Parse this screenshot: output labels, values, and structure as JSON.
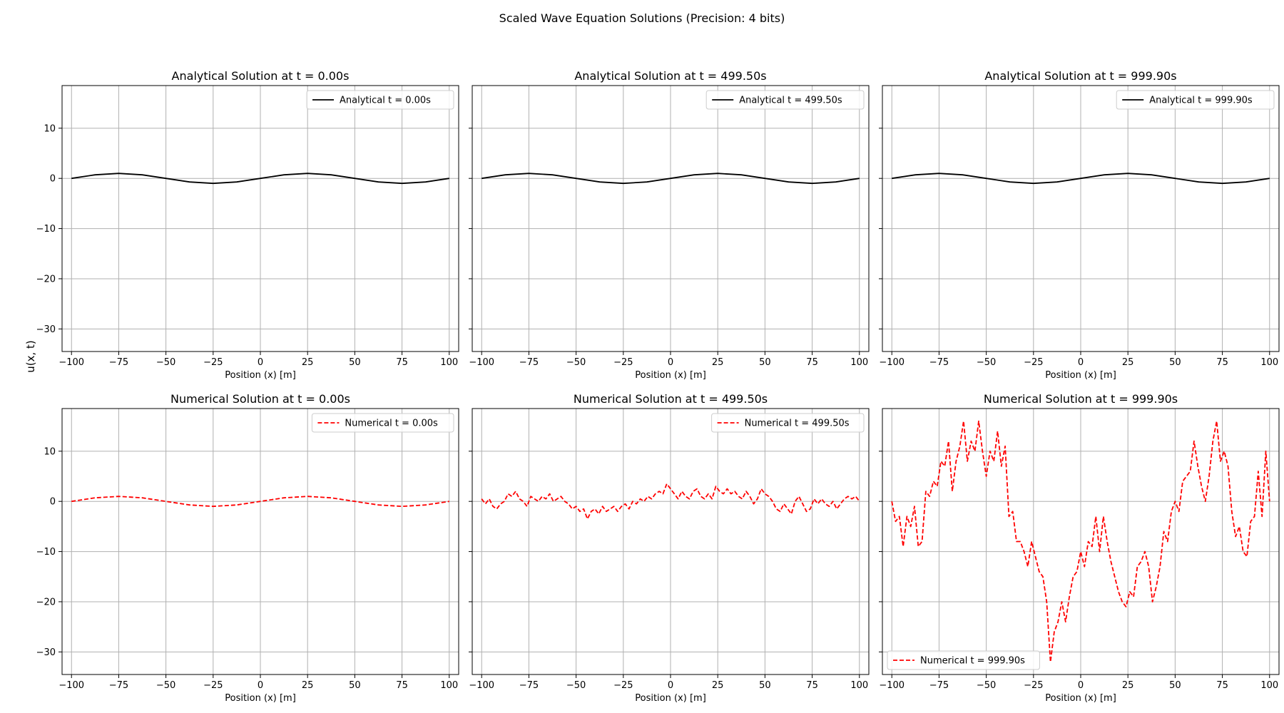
{
  "figure": {
    "title": "Scaled Wave Equation Solutions (Precision: 4 bits)",
    "ylabel": "u(x, t)"
  },
  "chart_data": [
    {
      "type": "line",
      "title": "Analytical Solution at t = 0.00s",
      "xlabel": "Position (x) [m]",
      "ylabel": "u(x, t)",
      "xlim": [
        -105,
        105
      ],
      "ylim": [
        -34.5,
        18.5
      ],
      "xticks": [
        -100,
        -75,
        -50,
        -25,
        0,
        25,
        50,
        75,
        100
      ],
      "yticks": [
        -30,
        -20,
        -10,
        0,
        10
      ],
      "show_yticklabels": true,
      "grid": true,
      "legend_position": "top-right",
      "series": [
        {
          "name": "Analytical t = 0.00s",
          "color": "#000000",
          "style": "solid",
          "x": [
            -100,
            -87.5,
            -75,
            -62.5,
            -50,
            -37.5,
            -25,
            -12.5,
            0,
            12.5,
            25,
            37.5,
            50,
            62.5,
            75,
            87.5,
            100
          ],
          "y": [
            0,
            0.71,
            1,
            0.71,
            0,
            -0.71,
            -1,
            -0.71,
            0,
            0.71,
            1,
            0.71,
            0,
            -0.71,
            -1,
            -0.71,
            0
          ]
        }
      ]
    },
    {
      "type": "line",
      "title": "Analytical Solution at t = 499.50s",
      "xlabel": "Position (x) [m]",
      "xlim": [
        -105,
        105
      ],
      "ylim": [
        -34.5,
        18.5
      ],
      "xticks": [
        -100,
        -75,
        -50,
        -25,
        0,
        25,
        50,
        75,
        100
      ],
      "yticks": [
        -30,
        -20,
        -10,
        0,
        10
      ],
      "show_yticklabels": false,
      "grid": true,
      "legend_position": "top-right",
      "series": [
        {
          "name": "Analytical t = 499.50s",
          "color": "#000000",
          "style": "solid",
          "x": [
            -100,
            -87.5,
            -75,
            -62.5,
            -50,
            -37.5,
            -25,
            -12.5,
            0,
            12.5,
            25,
            37.5,
            50,
            62.5,
            75,
            87.5,
            100
          ],
          "y": [
            0,
            0.71,
            1,
            0.71,
            0,
            -0.71,
            -1,
            -0.71,
            0,
            0.71,
            1,
            0.71,
            0,
            -0.71,
            -1,
            -0.71,
            0
          ]
        }
      ]
    },
    {
      "type": "line",
      "title": "Analytical Solution at t = 999.90s",
      "xlabel": "Position (x) [m]",
      "xlim": [
        -105,
        105
      ],
      "ylim": [
        -34.5,
        18.5
      ],
      "xticks": [
        -100,
        -75,
        -50,
        -25,
        0,
        25,
        50,
        75,
        100
      ],
      "yticks": [
        -30,
        -20,
        -10,
        0,
        10
      ],
      "show_yticklabels": false,
      "grid": true,
      "legend_position": "top-right",
      "series": [
        {
          "name": "Analytical t = 999.90s",
          "color": "#000000",
          "style": "solid",
          "x": [
            -100,
            -87.5,
            -75,
            -62.5,
            -50,
            -37.5,
            -25,
            -12.5,
            0,
            12.5,
            25,
            37.5,
            50,
            62.5,
            75,
            87.5,
            100
          ],
          "y": [
            0,
            0.71,
            1,
            0.71,
            0,
            -0.71,
            -1,
            -0.71,
            0,
            0.71,
            1,
            0.71,
            0,
            -0.71,
            -1,
            -0.71,
            0
          ]
        }
      ]
    },
    {
      "type": "line",
      "title": "Numerical Solution at t = 0.00s",
      "xlabel": "Position (x) [m]",
      "ylabel": "u(x, t)",
      "xlim": [
        -105,
        105
      ],
      "ylim": [
        -34.5,
        18.5
      ],
      "xticks": [
        -100,
        -75,
        -50,
        -25,
        0,
        25,
        50,
        75,
        100
      ],
      "yticks": [
        -30,
        -20,
        -10,
        0,
        10
      ],
      "show_yticklabels": true,
      "grid": true,
      "legend_position": "top-right",
      "series": [
        {
          "name": "Numerical t = 0.00s",
          "color": "#ff0000",
          "style": "dashed",
          "x": [
            -100,
            -87.5,
            -75,
            -62.5,
            -50,
            -37.5,
            -25,
            -12.5,
            0,
            12.5,
            25,
            37.5,
            50,
            62.5,
            75,
            87.5,
            100
          ],
          "y": [
            0,
            0.71,
            1,
            0.71,
            0,
            -0.71,
            -1,
            -0.71,
            0,
            0.71,
            1,
            0.71,
            0,
            -0.71,
            -1,
            -0.71,
            0
          ]
        }
      ]
    },
    {
      "type": "line",
      "title": "Numerical Solution at t = 499.50s",
      "xlabel": "Position (x) [m]",
      "xlim": [
        -105,
        105
      ],
      "ylim": [
        -34.5,
        18.5
      ],
      "xticks": [
        -100,
        -75,
        -50,
        -25,
        0,
        25,
        50,
        75,
        100
      ],
      "yticks": [
        -30,
        -20,
        -10,
        0,
        10
      ],
      "show_yticklabels": false,
      "grid": true,
      "legend_position": "top-right",
      "series": [
        {
          "name": "Numerical t = 499.50s",
          "color": "#ff0000",
          "style": "dashed",
          "x": [
            -100,
            -98,
            -96,
            -94,
            -92,
            -90,
            -88,
            -86,
            -84,
            -82,
            -80,
            -78,
            -76,
            -74,
            -72,
            -70,
            -68,
            -66,
            -64,
            -62,
            -60,
            -58,
            -56,
            -54,
            -52,
            -50,
            -48,
            -46,
            -44,
            -42,
            -40,
            -38,
            -36,
            -34,
            -32,
            -30,
            -28,
            -26,
            -24,
            -22,
            -20,
            -18,
            -16,
            -14,
            -12,
            -10,
            -8,
            -6,
            -4,
            -2,
            0,
            2,
            4,
            6,
            8,
            10,
            12,
            14,
            16,
            18,
            20,
            22,
            24,
            26,
            28,
            30,
            32,
            34,
            36,
            38,
            40,
            42,
            44,
            46,
            48,
            50,
            52,
            54,
            56,
            58,
            60,
            62,
            64,
            66,
            68,
            70,
            72,
            74,
            76,
            78,
            80,
            82,
            84,
            86,
            88,
            90,
            92,
            94,
            96,
            98,
            100
          ],
          "y": [
            0.5,
            -0.5,
            0.5,
            -1.0,
            -1.5,
            -0.5,
            0.0,
            1.5,
            1.0,
            2.0,
            0.5,
            0.0,
            -1.0,
            1.0,
            0.5,
            0.0,
            1.0,
            0.5,
            1.5,
            0.0,
            0.5,
            1.0,
            0.0,
            -0.5,
            -1.5,
            -1.0,
            -2.0,
            -1.5,
            -3.5,
            -2.0,
            -1.5,
            -2.5,
            -1.0,
            -2.0,
            -1.5,
            -1.0,
            -2.0,
            -1.0,
            -0.5,
            -1.5,
            0.0,
            -0.5,
            0.5,
            0.0,
            1.0,
            0.5,
            1.5,
            2.0,
            1.5,
            3.5,
            2.5,
            1.5,
            0.5,
            2.0,
            1.0,
            0.5,
            2.0,
            2.5,
            1.0,
            0.5,
            1.5,
            0.5,
            3.0,
            2.0,
            1.5,
            2.5,
            1.5,
            2.0,
            1.0,
            0.5,
            2.0,
            1.0,
            -0.5,
            0.5,
            2.5,
            1.5,
            1.0,
            0.0,
            -1.5,
            -2.0,
            -0.5,
            -1.5,
            -2.5,
            0.0,
            1.0,
            -0.5,
            -2.0,
            -1.5,
            0.5,
            -0.5,
            0.5,
            -0.5,
            -1.0,
            0.0,
            -1.5,
            -0.5,
            0.5,
            1.0,
            0.5,
            1.0,
            0.0
          ]
        }
      ]
    },
    {
      "type": "line",
      "title": "Numerical Solution at t = 999.90s",
      "xlabel": "Position (x) [m]",
      "xlim": [
        -105,
        105
      ],
      "ylim": [
        -34.5,
        18.5
      ],
      "xticks": [
        -100,
        -75,
        -50,
        -25,
        0,
        25,
        50,
        75,
        100
      ],
      "yticks": [
        -30,
        -20,
        -10,
        0,
        10
      ],
      "show_yticklabels": false,
      "grid": true,
      "legend_position": "bottom-left",
      "series": [
        {
          "name": "Numerical t = 999.90s",
          "color": "#ff0000",
          "style": "dashed",
          "x": [
            -100,
            -98,
            -96,
            -94,
            -92,
            -90,
            -88,
            -86,
            -84,
            -82,
            -80,
            -78,
            -76,
            -74,
            -72,
            -70,
            -68,
            -66,
            -64,
            -62,
            -60,
            -58,
            -56,
            -54,
            -52,
            -50,
            -48,
            -46,
            -44,
            -42,
            -40,
            -38,
            -36,
            -34,
            -32,
            -30,
            -28,
            -26,
            -24,
            -22,
            -20,
            -18,
            -16,
            -14,
            -12,
            -10,
            -8,
            -6,
            -4,
            -2,
            0,
            2,
            4,
            6,
            8,
            10,
            12,
            14,
            16,
            18,
            20,
            22,
            24,
            26,
            28,
            30,
            32,
            34,
            36,
            38,
            40,
            42,
            44,
            46,
            48,
            50,
            52,
            54,
            56,
            58,
            60,
            62,
            64,
            66,
            68,
            70,
            72,
            74,
            76,
            78,
            80,
            82,
            84,
            86,
            88,
            90,
            92,
            94,
            96,
            98,
            100
          ],
          "y": [
            0,
            -4,
            -3,
            -9,
            -3,
            -5,
            -1,
            -9,
            -8,
            2,
            1,
            4,
            3,
            8,
            7,
            12,
            2,
            8,
            11,
            16,
            8,
            12,
            10,
            16,
            10,
            5,
            10,
            8,
            14,
            7,
            11,
            -3,
            -2,
            -8,
            -8,
            -10,
            -13,
            -8,
            -11,
            -14,
            -15,
            -20,
            -32,
            -26,
            -24,
            -20,
            -24,
            -19,
            -15,
            -14,
            -10,
            -13,
            -8,
            -9,
            -3,
            -10,
            -3,
            -8,
            -12,
            -15,
            -18,
            -20,
            -21,
            -18,
            -19,
            -13,
            -12,
            -10,
            -13,
            -20,
            -17,
            -13,
            -6,
            -8,
            -2,
            0,
            -2,
            4,
            5,
            6,
            12,
            7,
            3,
            0,
            5,
            12,
            16,
            8,
            10,
            7,
            -2,
            -7,
            -5,
            -10,
            -11,
            -4,
            -3,
            6,
            -3,
            10,
            0
          ]
        }
      ]
    }
  ]
}
